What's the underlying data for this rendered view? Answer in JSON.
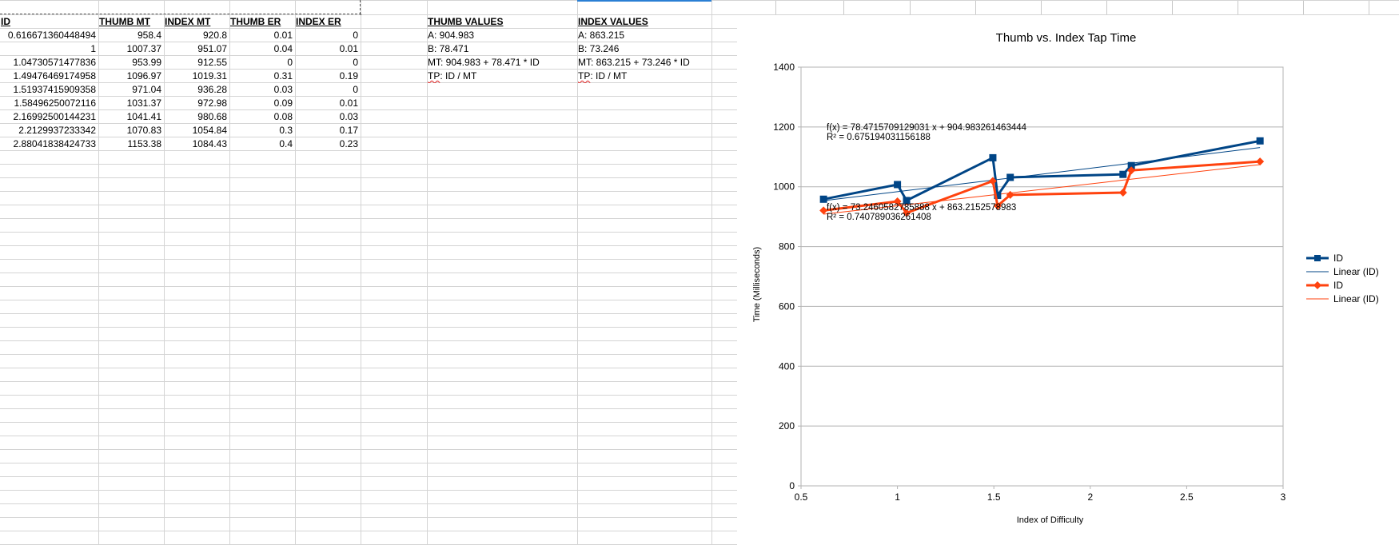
{
  "sheet": {
    "headers": [
      "ID",
      "THUMB MT",
      "INDEX MT",
      "THUMB ER",
      "INDEX ER"
    ],
    "rows": [
      [
        "0.616671360448494",
        "958.4",
        "920.8",
        "0.01",
        "0"
      ],
      [
        "1",
        "1007.37",
        "951.07",
        "0.04",
        "0.01"
      ],
      [
        "1.04730571477836",
        "953.99",
        "912.55",
        "0",
        "0"
      ],
      [
        "1.49476469174958",
        "1096.97",
        "1019.31",
        "0.31",
        "0.19"
      ],
      [
        "1.51937415909358",
        "971.04",
        "936.28",
        "0.03",
        "0"
      ],
      [
        "1.58496250072116",
        "1031.37",
        "972.98",
        "0.09",
        "0.01"
      ],
      [
        "2.16992500144231",
        "1041.41",
        "980.68",
        "0.08",
        "0.03"
      ],
      [
        "2.2129937233342",
        "1070.83",
        "1054.84",
        "0.3",
        "0.17"
      ],
      [
        "2.88041838424733",
        "1153.38",
        "1084.43",
        "0.4",
        "0.23"
      ]
    ],
    "thumb_values": {
      "title": "THUMB VALUES",
      "a": "A: 904.983",
      "b": "B: 78.471",
      "mt": "MT: 904.983 + 78.471 * ID",
      "tp_label": "TP",
      "tp_rest": ": ID / MT"
    },
    "index_values": {
      "title": "INDEX VALUES",
      "a": "A: 863.215",
      "b": "B: 73.246",
      "mt": "MT: 863.215 + 73.246 * ID",
      "tp_label": "TP",
      "tp_rest": ": ID / MT"
    }
  },
  "chart_data": {
    "type": "line",
    "title": "Thumb vs. Index Tap Time",
    "xlabel": "Index of Difficulty",
    "ylabel": "Time (Milliseconds)",
    "xlim": [
      0.5,
      3
    ],
    "ylim": [
      0,
      1400
    ],
    "xticks": [
      "0.5",
      "1",
      "1.5",
      "2",
      "2.5",
      "3"
    ],
    "yticks": [
      "0",
      "200",
      "400",
      "600",
      "800",
      "1000",
      "1200",
      "1400"
    ],
    "grid": "horizontal",
    "legend_position": "right",
    "x": [
      0.616671360448494,
      1,
      1.04730571477836,
      1.49476469174958,
      1.51937415909358,
      1.58496250072116,
      2.16992500144231,
      2.2129937233342,
      2.88041838424733
    ],
    "series": [
      {
        "name": "ID",
        "color": "#004586",
        "marker": "square",
        "values": [
          958.4,
          1007.37,
          953.99,
          1096.97,
          971.04,
          1031.37,
          1041.41,
          1070.83,
          1153.38
        ]
      },
      {
        "name": "ID",
        "color": "#ff420e",
        "marker": "diamond",
        "values": [
          920.8,
          951.07,
          912.55,
          1019.31,
          936.28,
          972.98,
          980.68,
          1054.84,
          1084.43
        ]
      }
    ],
    "trendlines": [
      {
        "name": "Linear (ID)",
        "color": "#004586",
        "slope": 78.4715709129031,
        "intercept": 904.983261463444,
        "equation": "f(x) = 78.4715709129031 x + 904.983261463444",
        "r2": "R² = 0.675194031156188"
      },
      {
        "name": "Linear (ID)",
        "color": "#ff420e",
        "slope": 73.2460582785888,
        "intercept": 863.2152578983,
        "equation": "f(x) = 73.2460582785888 x + 863.2152578983",
        "r2": "R² = 0.740789036261408"
      }
    ]
  }
}
